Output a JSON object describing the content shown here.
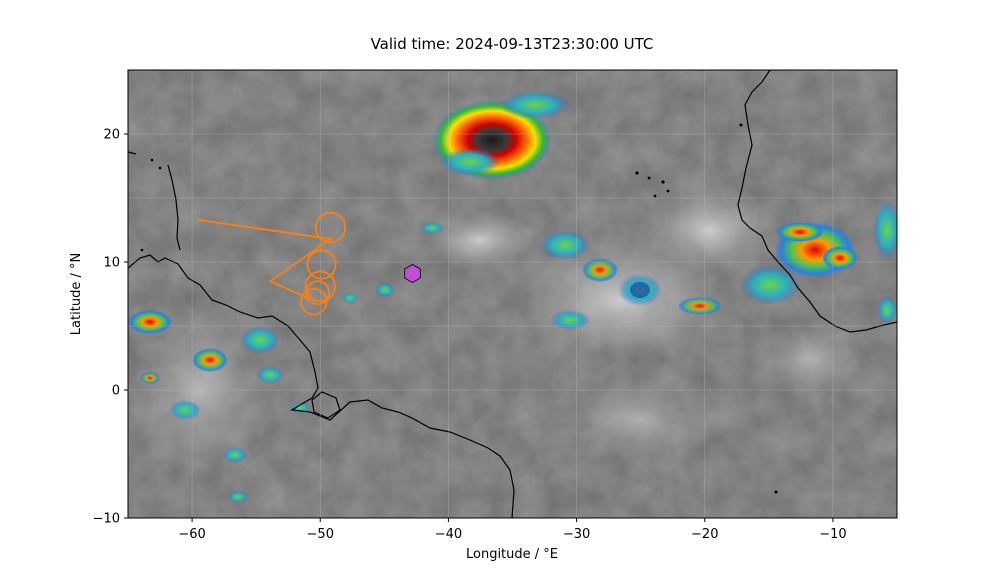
{
  "title": "Valid time: 2024-09-13T23:30:00 UTC",
  "xlabel": "Longitude / °E",
  "ylabel": "Latitude / °N",
  "chart_data": {
    "type": "scatter",
    "title": "Valid time: 2024-09-13T23:30:00 UTC",
    "xlabel": "Longitude / °E",
    "ylabel": "Latitude / °N",
    "xlim": [
      -65,
      -5
    ],
    "ylim": [
      -10,
      25
    ],
    "grid": true,
    "x_ticks": [
      -60,
      -50,
      -40,
      -30,
      -20,
      -10
    ],
    "x_tick_labels": [
      "−60",
      "−50",
      "−40",
      "−30",
      "−20",
      "−10"
    ],
    "y_ticks": [
      -10,
      0,
      10,
      20
    ],
    "y_tick_labels": [
      "−10",
      "0",
      "10",
      "20"
    ],
    "track": {
      "color": "#ff7f0e",
      "points": [
        [
          -59.6,
          13.3
        ],
        [
          -49.2,
          11.8
        ],
        [
          -53.9,
          8.5
        ],
        [
          -50.8,
          7.1
        ]
      ]
    },
    "circles": {
      "color": "#ff7f0e",
      "centers": [
        [
          -49.2,
          12.7
        ],
        [
          -49.9,
          9.8
        ],
        [
          -50.0,
          8.1
        ],
        [
          -50.2,
          7.6
        ],
        [
          -50.5,
          6.9
        ]
      ],
      "radius_deg": [
        1.15,
        1.1,
        1.15,
        0.9,
        1.0
      ]
    },
    "hexagon_marker": {
      "lon": -42.8,
      "lat": 9.1,
      "color": "#bf4fd9"
    }
  },
  "colors": {
    "track": "#ff7f0e",
    "marker": "#bf4fd9",
    "coast": "#000000",
    "background_ir": "#6e6e6e"
  }
}
